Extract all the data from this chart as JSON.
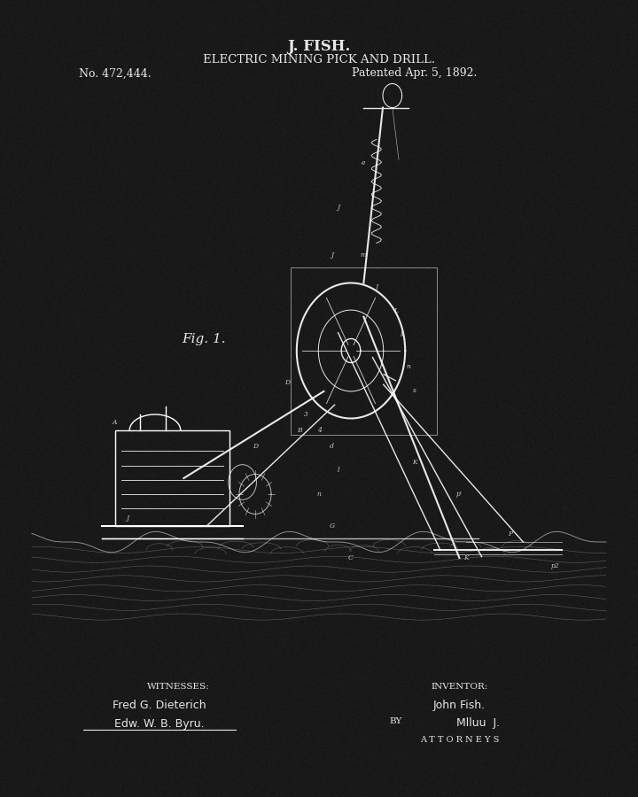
{
  "background_color": "#1a1a1a",
  "text_color": "#e8e8e8",
  "title_line1": "J. FISH.",
  "title_line2": "ELECTRIC MINING PICK AND DRILL.",
  "patent_no": "No. 472,444.",
  "patent_date": "Patented Apr. 5, 1892.",
  "fig_label": "Fig. 1.",
  "witnesses_label": "WITNESSES:",
  "witness1": "Fred G. Dieterich",
  "witness2": "Edw. W. B. Byru.",
  "inventor_label": "INVENTOR:",
  "inventor_name": "John Fish.",
  "by_label": "BY",
  "attorneys_label": "A T T O R N E Y S",
  "fig_width": 7.2,
  "fig_height": 9.0,
  "dpi": 100
}
